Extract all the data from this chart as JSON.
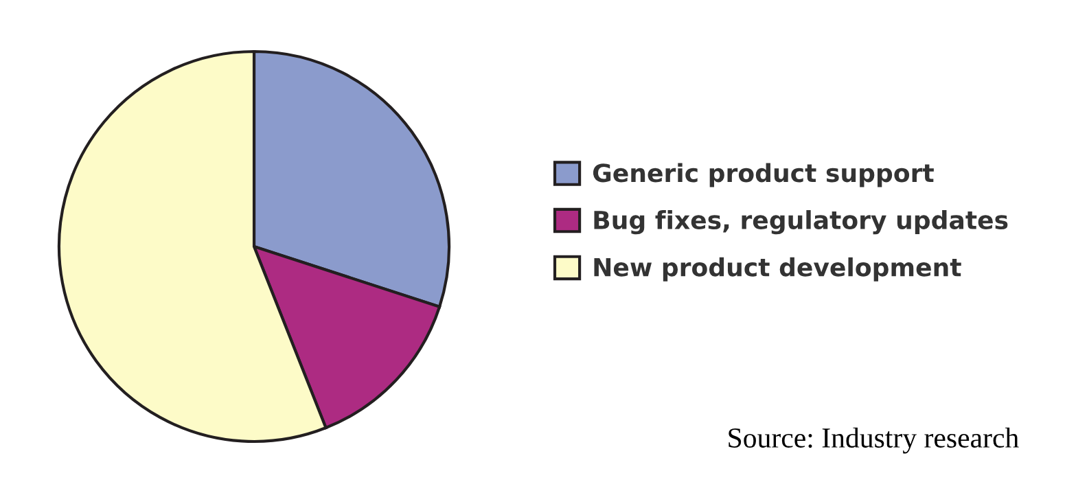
{
  "chart_data": {
    "type": "pie",
    "categories": [
      "Generic product support",
      "Bug fixes, regulatory updates",
      "New product development"
    ],
    "values": [
      30,
      14,
      56
    ],
    "colors": [
      "#8b9bcc",
      "#ad2b82",
      "#fdfbc8"
    ],
    "legend": "right",
    "annotations": [
      "Source: Industry research"
    ]
  }
}
